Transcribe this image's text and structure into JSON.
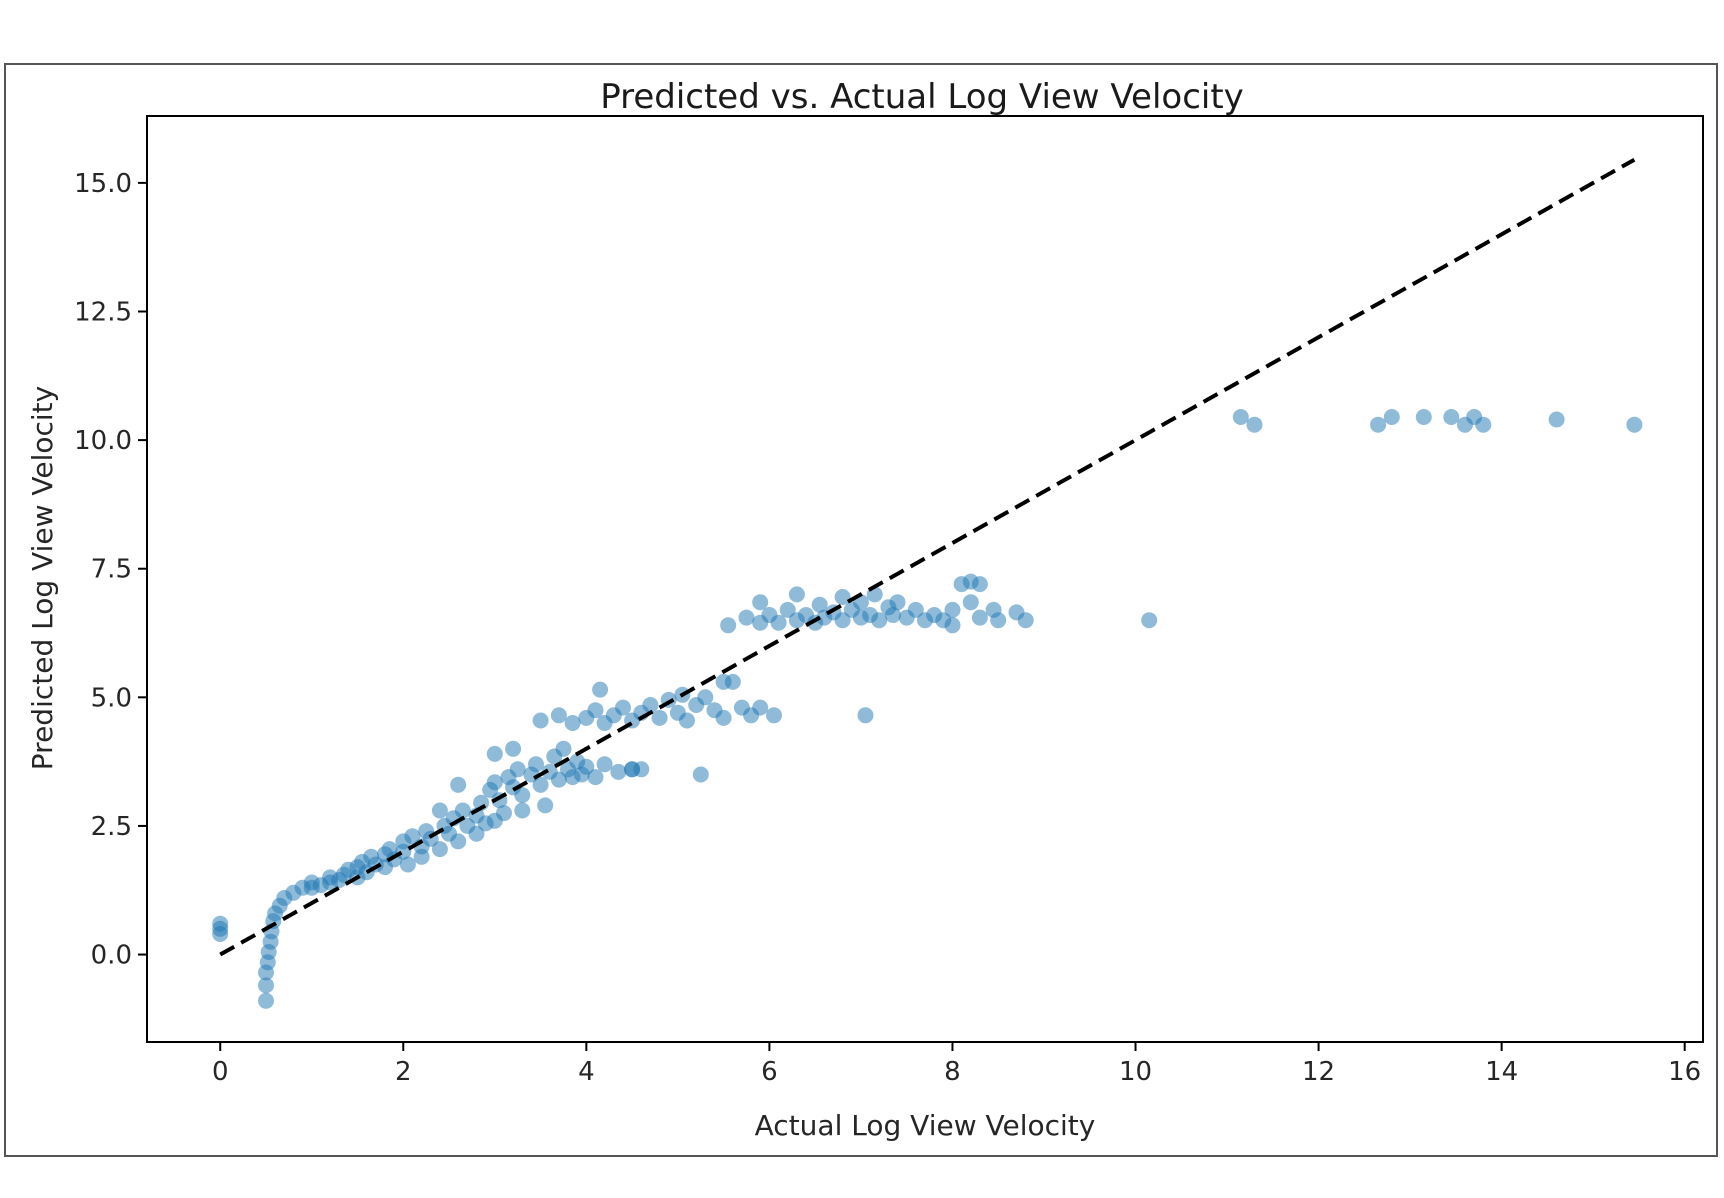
{
  "chart_data": {
    "type": "scatter",
    "title": "Predicted vs. Actual Log View Velocity",
    "xlabel": "Actual Log View Velocity",
    "ylabel": "Predicted Log View Velocity",
    "xlim": [
      -0.8,
      16.2
    ],
    "ylim": [
      -1.7,
      16.3
    ],
    "x_ticks": [
      "0",
      "2",
      "4",
      "6",
      "8",
      "10",
      "12",
      "14",
      "16"
    ],
    "y_ticks": [
      "0.0",
      "2.5",
      "5.0",
      "7.5",
      "10.0",
      "12.5",
      "15.0"
    ],
    "grid": false,
    "legend": "none",
    "point_color": "#1f77b4",
    "point_opacity": 0.5,
    "reference_line": {
      "style": "dashed",
      "color": "#000000",
      "x": [
        0,
        15.45
      ],
      "y": [
        0,
        15.45
      ]
    },
    "series": [
      {
        "points": [
          [
            0.0,
            0.4
          ],
          [
            0.0,
            0.5
          ],
          [
            0.0,
            0.6
          ],
          [
            0.5,
            -0.9
          ],
          [
            0.5,
            -0.6
          ],
          [
            0.5,
            -0.35
          ],
          [
            0.52,
            -0.15
          ],
          [
            0.53,
            0.05
          ],
          [
            0.55,
            0.25
          ],
          [
            0.56,
            0.45
          ],
          [
            0.58,
            0.65
          ],
          [
            0.6,
            0.8
          ],
          [
            0.65,
            0.95
          ],
          [
            0.7,
            1.1
          ],
          [
            0.8,
            1.2
          ],
          [
            0.9,
            1.3
          ],
          [
            1.0,
            1.4
          ],
          [
            1.0,
            1.3
          ],
          [
            1.1,
            1.35
          ],
          [
            1.2,
            1.4
          ],
          [
            1.2,
            1.5
          ],
          [
            1.3,
            1.45
          ],
          [
            1.35,
            1.55
          ],
          [
            1.4,
            1.65
          ],
          [
            1.5,
            1.5
          ],
          [
            1.5,
            1.7
          ],
          [
            1.55,
            1.8
          ],
          [
            1.6,
            1.6
          ],
          [
            1.65,
            1.9
          ],
          [
            1.7,
            1.75
          ],
          [
            1.8,
            1.7
          ],
          [
            1.8,
            1.95
          ],
          [
            1.85,
            2.05
          ],
          [
            1.9,
            1.85
          ],
          [
            2.0,
            2.0
          ],
          [
            2.0,
            2.2
          ],
          [
            2.05,
            1.75
          ],
          [
            2.1,
            2.3
          ],
          [
            2.2,
            2.1
          ],
          [
            2.2,
            1.9
          ],
          [
            2.25,
            2.4
          ],
          [
            2.3,
            2.25
          ],
          [
            2.4,
            2.05
          ],
          [
            2.45,
            2.5
          ],
          [
            2.5,
            2.35
          ],
          [
            2.55,
            2.65
          ],
          [
            2.6,
            2.2
          ],
          [
            2.65,
            2.8
          ],
          [
            2.7,
            2.5
          ],
          [
            2.8,
            2.35
          ],
          [
            2.8,
            2.7
          ],
          [
            2.85,
            2.95
          ],
          [
            2.9,
            2.55
          ],
          [
            2.95,
            3.2
          ],
          [
            3.0,
            2.6
          ],
          [
            3.0,
            3.35
          ],
          [
            3.05,
            3.0
          ],
          [
            3.1,
            2.75
          ],
          [
            3.15,
            3.45
          ],
          [
            3.2,
            3.25
          ],
          [
            3.25,
            3.6
          ],
          [
            3.3,
            2.8
          ],
          [
            3.3,
            3.1
          ],
          [
            3.4,
            3.5
          ],
          [
            3.45,
            3.7
          ],
          [
            3.5,
            3.3
          ],
          [
            3.55,
            2.9
          ],
          [
            3.6,
            3.55
          ],
          [
            3.65,
            3.85
          ],
          [
            3.7,
            3.4
          ],
          [
            3.75,
            4.0
          ],
          [
            3.8,
            3.6
          ],
          [
            3.85,
            3.45
          ],
          [
            3.9,
            3.75
          ],
          [
            3.95,
            3.5
          ],
          [
            4.0,
            3.65
          ],
          [
            4.1,
            3.45
          ],
          [
            4.2,
            3.7
          ],
          [
            4.35,
            3.55
          ],
          [
            4.5,
            3.6
          ],
          [
            4.6,
            3.6
          ],
          [
            3.2,
            4.0
          ],
          [
            2.6,
            3.3
          ],
          [
            2.4,
            2.8
          ],
          [
            3.0,
            3.9
          ],
          [
            3.5,
            4.55
          ],
          [
            3.7,
            4.65
          ],
          [
            3.85,
            4.5
          ],
          [
            4.0,
            4.6
          ],
          [
            4.1,
            4.75
          ],
          [
            4.2,
            4.5
          ],
          [
            4.3,
            4.65
          ],
          [
            4.4,
            4.8
          ],
          [
            4.5,
            4.55
          ],
          [
            4.6,
            4.7
          ],
          [
            4.7,
            4.85
          ],
          [
            4.8,
            4.6
          ],
          [
            4.9,
            4.95
          ],
          [
            5.0,
            4.7
          ],
          [
            5.05,
            5.05
          ],
          [
            5.1,
            4.55
          ],
          [
            5.2,
            4.85
          ],
          [
            5.3,
            5.0
          ],
          [
            5.4,
            4.75
          ],
          [
            5.5,
            4.6
          ],
          [
            4.15,
            5.15
          ],
          [
            5.5,
            5.3
          ],
          [
            5.6,
            5.3
          ],
          [
            5.7,
            4.8
          ],
          [
            5.8,
            4.65
          ],
          [
            5.9,
            4.8
          ],
          [
            6.05,
            4.65
          ],
          [
            5.25,
            3.5
          ],
          [
            4.5,
            3.6
          ],
          [
            7.05,
            4.65
          ],
          [
            5.55,
            6.4
          ],
          [
            5.75,
            6.55
          ],
          [
            5.9,
            6.45
          ],
          [
            5.9,
            6.85
          ],
          [
            6.0,
            6.6
          ],
          [
            6.1,
            6.45
          ],
          [
            6.2,
            6.7
          ],
          [
            6.3,
            6.5
          ],
          [
            6.3,
            7.0
          ],
          [
            6.4,
            6.6
          ],
          [
            6.5,
            6.45
          ],
          [
            6.55,
            6.8
          ],
          [
            6.6,
            6.55
          ],
          [
            6.7,
            6.65
          ],
          [
            6.8,
            6.5
          ],
          [
            6.8,
            6.95
          ],
          [
            6.9,
            6.7
          ],
          [
            7.0,
            6.55
          ],
          [
            7.0,
            6.85
          ],
          [
            7.1,
            6.6
          ],
          [
            7.15,
            7.0
          ],
          [
            7.2,
            6.5
          ],
          [
            7.3,
            6.75
          ],
          [
            7.35,
            6.6
          ],
          [
            7.4,
            6.85
          ],
          [
            7.5,
            6.55
          ],
          [
            7.6,
            6.7
          ],
          [
            7.7,
            6.5
          ],
          [
            7.8,
            6.6
          ],
          [
            7.9,
            6.5
          ],
          [
            8.0,
            6.4
          ],
          [
            8.0,
            6.7
          ],
          [
            8.1,
            7.2
          ],
          [
            8.2,
            7.25
          ],
          [
            8.3,
            7.2
          ],
          [
            8.2,
            6.85
          ],
          [
            8.3,
            6.55
          ],
          [
            8.45,
            6.7
          ],
          [
            8.5,
            6.5
          ],
          [
            8.7,
            6.65
          ],
          [
            8.8,
            6.5
          ],
          [
            10.15,
            6.5
          ],
          [
            11.15,
            10.45
          ],
          [
            11.3,
            10.3
          ],
          [
            12.65,
            10.3
          ],
          [
            12.8,
            10.45
          ],
          [
            13.15,
            10.45
          ],
          [
            13.45,
            10.45
          ],
          [
            13.6,
            10.3
          ],
          [
            13.7,
            10.45
          ],
          [
            13.8,
            10.3
          ],
          [
            14.6,
            10.4
          ],
          [
            15.45,
            10.3
          ]
        ]
      }
    ]
  }
}
